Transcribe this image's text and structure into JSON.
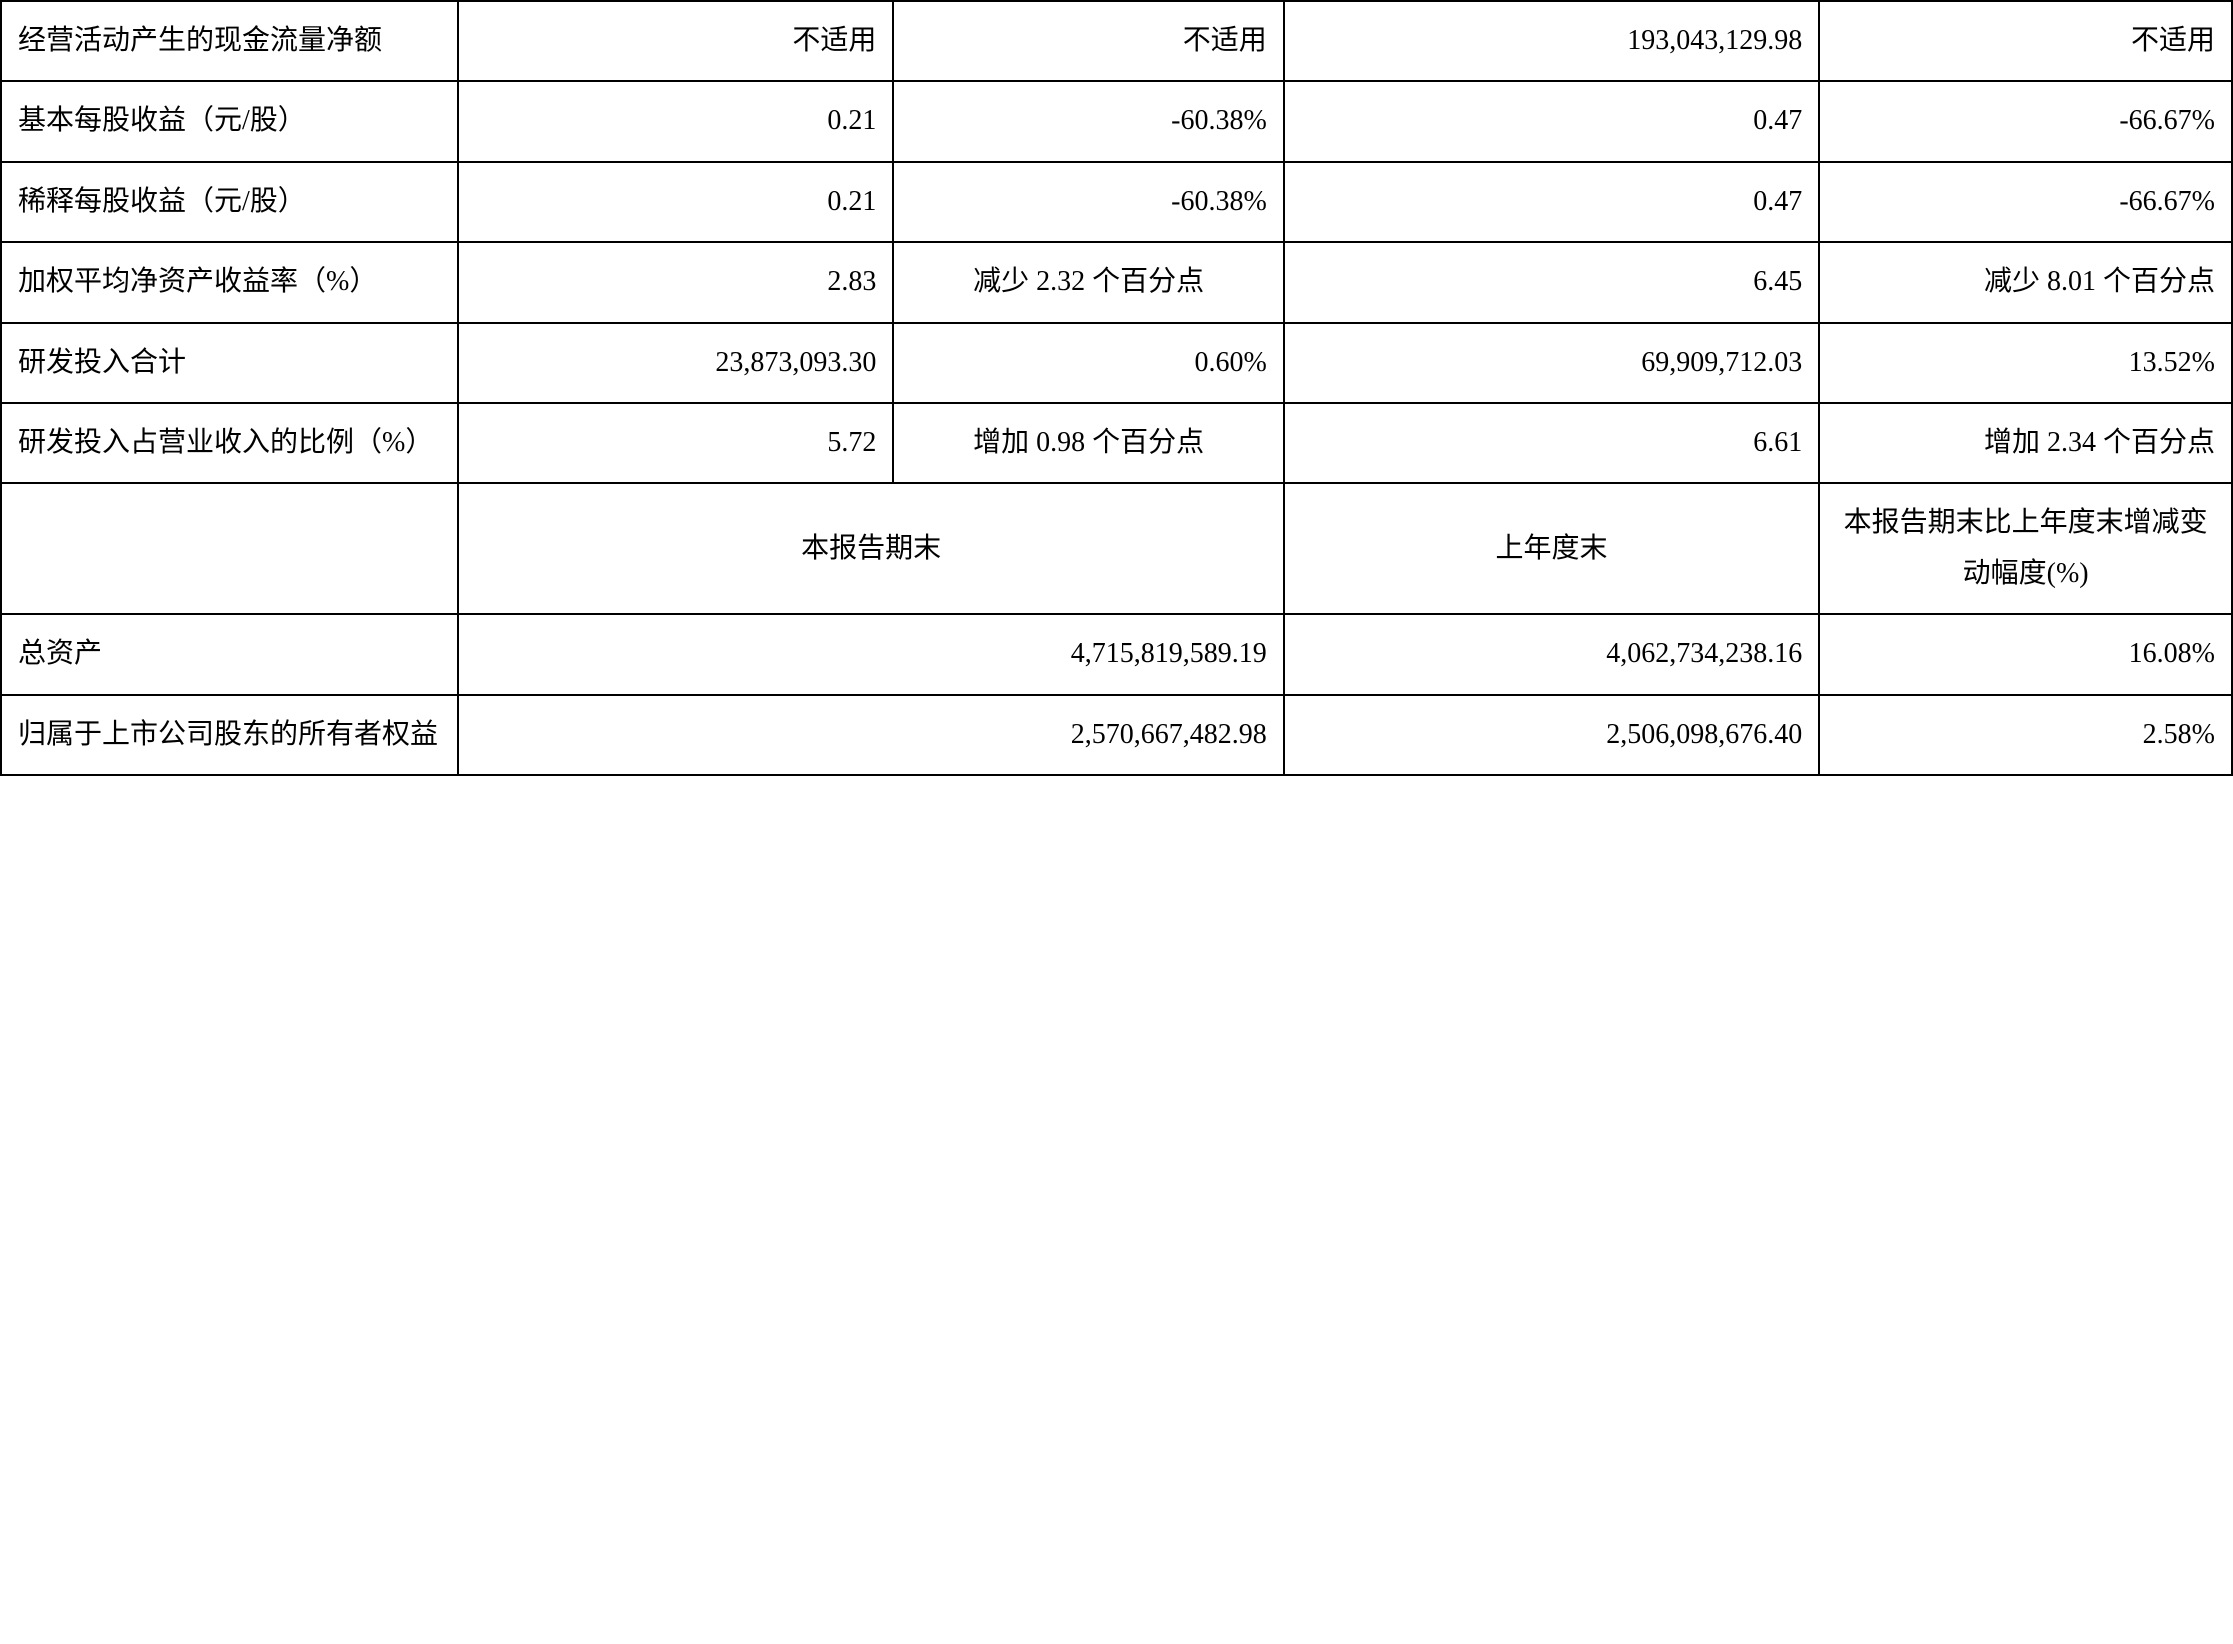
{
  "table": {
    "colors": {
      "border": "#000000",
      "text": "#000000",
      "background": "#ffffff"
    },
    "font": {
      "family": "SimSun",
      "size_pt": 28,
      "line_height": 1.8
    },
    "column_widths_pct": [
      20.5,
      19.5,
      17.5,
      24,
      18.5
    ],
    "rows": [
      {
        "label": "经营活动产生的现金流量净额",
        "c1": "不适用",
        "c2": "不适用",
        "c3": "193,043,129.98",
        "c4": "不适用"
      },
      {
        "label": "基本每股收益（元/股）",
        "c1": "0.21",
        "c2": "-60.38%",
        "c3": "0.47",
        "c4": "-66.67%"
      },
      {
        "label": "稀释每股收益（元/股）",
        "c1": "0.21",
        "c2": "-60.38%",
        "c3": "0.47",
        "c4": "-66.67%"
      },
      {
        "label": "加权平均净资产收益率（%）",
        "c1": "2.83",
        "c2": "减少 2.32 个百分点",
        "c2_align": "center",
        "c3": "6.45",
        "c4": "减少 8.01 个百分点"
      },
      {
        "label": "研发投入合计",
        "c1": "23,873,093.30",
        "c2": "0.60%",
        "c3": "69,909,712.03",
        "c4": "13.52%"
      },
      {
        "label": "研发投入占营业收入的比例（%）",
        "c1": "5.72",
        "c2": "增加 0.98 个百分点",
        "c2_align": "center",
        "c3": "6.61",
        "c4": "增加 2.34 个百分点"
      }
    ],
    "header_row": {
      "label": "",
      "span1": "本报告期末",
      "span2": "上年度末",
      "col5": "本报告期末比上年度末增减变动幅度(%)"
    },
    "footer_rows": [
      {
        "label": "总资产",
        "span1": "4,715,819,589.19",
        "span2": "4,062,734,238.16",
        "col5": "16.08%"
      },
      {
        "label": "归属于上市公司股东的所有者权益",
        "span1": "2,570,667,482.98",
        "span2": "2,506,098,676.40",
        "col5": "2.58%"
      }
    ]
  }
}
